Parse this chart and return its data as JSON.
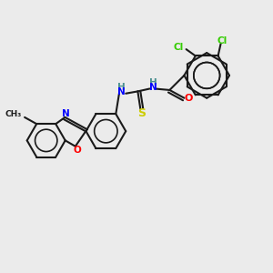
{
  "background_color": "#ebebeb",
  "bond_color": "#1a1a1a",
  "atom_colors": {
    "N": "#0000ff",
    "O": "#ff0000",
    "S": "#cccc00",
    "Cl": "#33cc00",
    "C": "#1a1a1a",
    "H": "#4a9090"
  },
  "figsize": [
    3.0,
    3.0
  ],
  "dpi": 100,
  "lw": 1.5
}
